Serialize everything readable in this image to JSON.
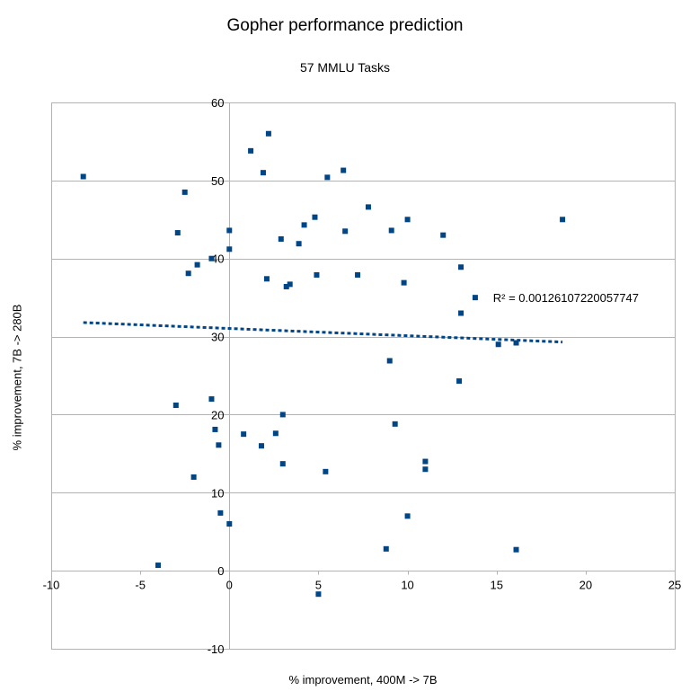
{
  "chart_data": {
    "type": "scatter",
    "title": "Gopher performance prediction",
    "subtitle": "57 MMLU Tasks",
    "xlabel": "% improvement, 400M -> 7B",
    "ylabel": "% improvement, 7B -> 280B",
    "xlim": [
      -10,
      25
    ],
    "ylim": [
      -10,
      60
    ],
    "xticks": [
      -10,
      -5,
      0,
      5,
      10,
      15,
      20,
      25
    ],
    "yticks": [
      -10,
      0,
      10,
      20,
      30,
      40,
      50,
      60
    ],
    "grid": "horizontal",
    "marker_color": "#004586",
    "points": [
      [
        -8.2,
        50.5
      ],
      [
        1.2,
        53.8
      ],
      [
        2.2,
        56
      ],
      [
        -2.5,
        48.5
      ],
      [
        1.9,
        51
      ],
      [
        5.5,
        50.4
      ],
      [
        6.4,
        51.3
      ],
      [
        -2.9,
        43.3
      ],
      [
        0,
        43.6
      ],
      [
        2.9,
        42.5
      ],
      [
        4.2,
        44.3
      ],
      [
        4.8,
        45.3
      ],
      [
        6.5,
        43.5
      ],
      [
        7.8,
        46.6
      ],
      [
        9.1,
        43.6
      ],
      [
        10,
        45
      ],
      [
        12,
        43
      ],
      [
        18.7,
        45
      ],
      [
        0,
        41.2
      ],
      [
        3.9,
        41.9
      ],
      [
        -1.8,
        39.2
      ],
      [
        -1,
        40
      ],
      [
        -2.3,
        38.1
      ],
      [
        2.1,
        37.4
      ],
      [
        3.2,
        36.4
      ],
      [
        3.4,
        36.7
      ],
      [
        4.9,
        37.9
      ],
      [
        7.2,
        37.9
      ],
      [
        9.8,
        36.9
      ],
      [
        13,
        38.9
      ],
      [
        13.8,
        35
      ],
      [
        13,
        33
      ],
      [
        15.1,
        29
      ],
      [
        16.1,
        29.2
      ],
      [
        9,
        26.9
      ],
      [
        12.9,
        24.3
      ],
      [
        -1,
        22
      ],
      [
        -3,
        21.2
      ],
      [
        -0.8,
        18.1
      ],
      [
        -0.6,
        16.1
      ],
      [
        0.8,
        17.5
      ],
      [
        3,
        20
      ],
      [
        2.6,
        17.6
      ],
      [
        1.8,
        16
      ],
      [
        3,
        13.7
      ],
      [
        5.4,
        12.7
      ],
      [
        9.3,
        18.8
      ],
      [
        11,
        14
      ],
      [
        11,
        13
      ],
      [
        -2,
        12
      ],
      [
        -0.5,
        7.4
      ],
      [
        0,
        6
      ],
      [
        10,
        7
      ],
      [
        8.8,
        2.8
      ],
      [
        16.1,
        2.7
      ],
      [
        -4,
        0.7
      ],
      [
        5,
        -3
      ]
    ],
    "trendline": {
      "type": "linear",
      "style": "dotted",
      "x_range": [
        -8.2,
        18.7
      ],
      "y_range": [
        31.8,
        29.3
      ],
      "label": "R² = 0.00126107220057747"
    }
  }
}
